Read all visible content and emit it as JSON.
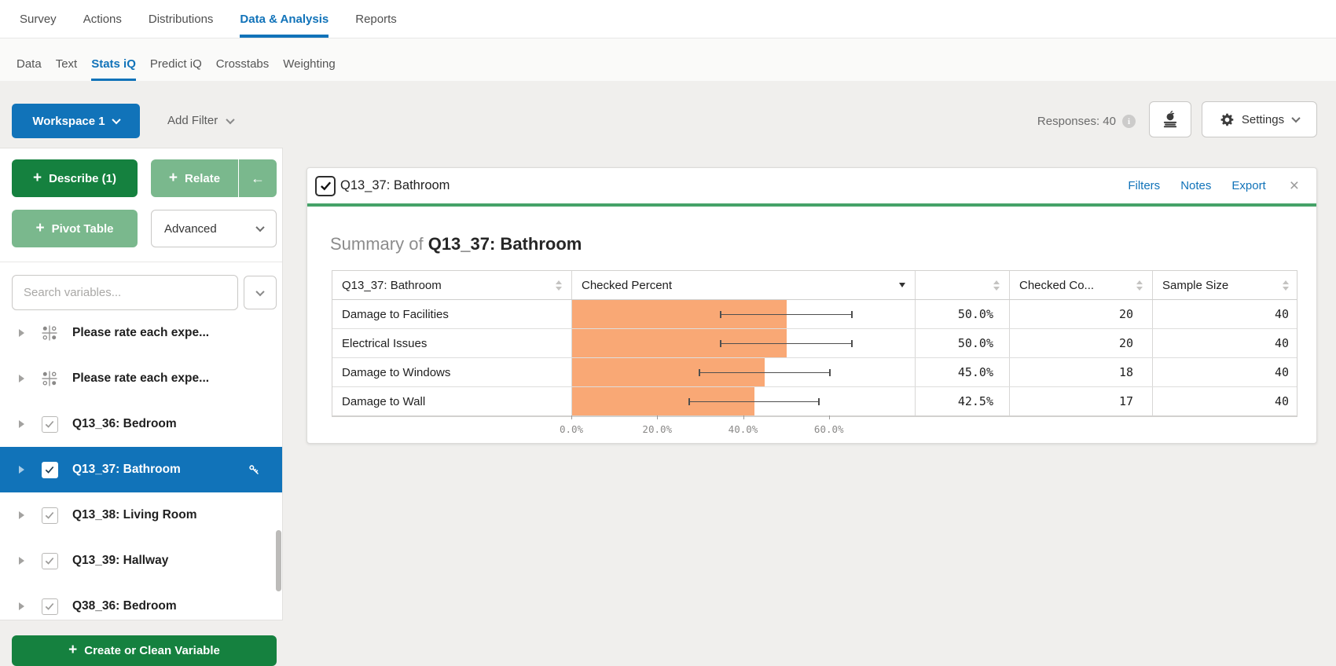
{
  "colors": {
    "accent_blue": "#1173b9",
    "dark_green": "#15813f",
    "light_green": "#7ab88d",
    "header_green": "#45a268",
    "bar_orange": "#f9a875"
  },
  "nav": {
    "tabs": [
      "Survey",
      "Actions",
      "Distributions",
      "Data & Analysis",
      "Reports"
    ],
    "active": "Data & Analysis"
  },
  "subnav": {
    "tabs": [
      "Data",
      "Text",
      "Stats iQ",
      "Predict iQ",
      "Crosstabs",
      "Weighting"
    ],
    "active": "Stats iQ"
  },
  "toolbar": {
    "workspace_label": "Workspace 1",
    "add_filter_label": "Add Filter",
    "responses_label": "Responses: 40",
    "settings_label": "Settings"
  },
  "icons": {
    "plus": "+",
    "back_arrow": "←",
    "close": "×",
    "info": "i"
  },
  "sidebar": {
    "buttons": {
      "describe": "Describe (1)",
      "relate": "Relate",
      "pivot": "Pivot Table",
      "advanced": "Advanced"
    },
    "search_placeholder": "Search variables...",
    "variables": [
      {
        "label": "Please rate each expe...",
        "type": "matrix",
        "checked": false,
        "selected": false,
        "key": false
      },
      {
        "label": "Please rate each expe...",
        "type": "matrix",
        "checked": false,
        "selected": false,
        "key": false
      },
      {
        "label": "Q13_36: Bedroom",
        "type": "checkbox",
        "checked": true,
        "selected": false,
        "key": false
      },
      {
        "label": "Q13_37: Bathroom",
        "type": "checkbox",
        "checked": true,
        "selected": true,
        "key": true
      },
      {
        "label": "Q13_38: Living Room",
        "type": "checkbox",
        "checked": true,
        "selected": false,
        "key": false
      },
      {
        "label": "Q13_39: Hallway",
        "type": "checkbox",
        "checked": true,
        "selected": false,
        "key": false
      },
      {
        "label": "Q38_36: Bedroom",
        "type": "checkbox",
        "checked": true,
        "selected": false,
        "key": false
      }
    ],
    "create_button": "Create or Clean Variable"
  },
  "card": {
    "title": "Q13_37: Bathroom",
    "checked": true,
    "actions": [
      "Filters",
      "Notes",
      "Export"
    ],
    "summary_prefix": "Summary of ",
    "summary_title": "Q13_37: Bathroom"
  },
  "chart_data": {
    "type": "bar",
    "orientation": "horizontal",
    "title": "Summary of Q13_37: Bathroom",
    "columns": [
      "Q13_37: Bathroom",
      "Checked Percent",
      "",
      "Checked Co...",
      "Sample Size"
    ],
    "categories": [
      "Damage to Facilities",
      "Electrical Issues",
      "Damage to Windows",
      "Damage to Wall"
    ],
    "series": [
      {
        "name": "Checked Percent",
        "values": [
          50.0,
          50.0,
          45.0,
          42.5
        ]
      },
      {
        "name": "Checked Count",
        "values": [
          20,
          20,
          18,
          17
        ]
      },
      {
        "name": "Sample Size",
        "values": [
          40,
          40,
          40,
          40
        ]
      }
    ],
    "percent_labels": [
      "50.0%",
      "50.0%",
      "45.0%",
      "42.5%"
    ],
    "ci_low": [
      34.5,
      34.5,
      29.6,
      27.2
    ],
    "ci_high": [
      65.5,
      65.5,
      60.4,
      57.8
    ],
    "xlim": [
      0,
      80
    ],
    "x_tick_values": [
      0,
      20,
      40,
      60
    ],
    "x_ticks": [
      "0.0%",
      "20.0%",
      "40.0%",
      "60.0%"
    ],
    "grid": false,
    "bar_color": "#f9a875"
  }
}
